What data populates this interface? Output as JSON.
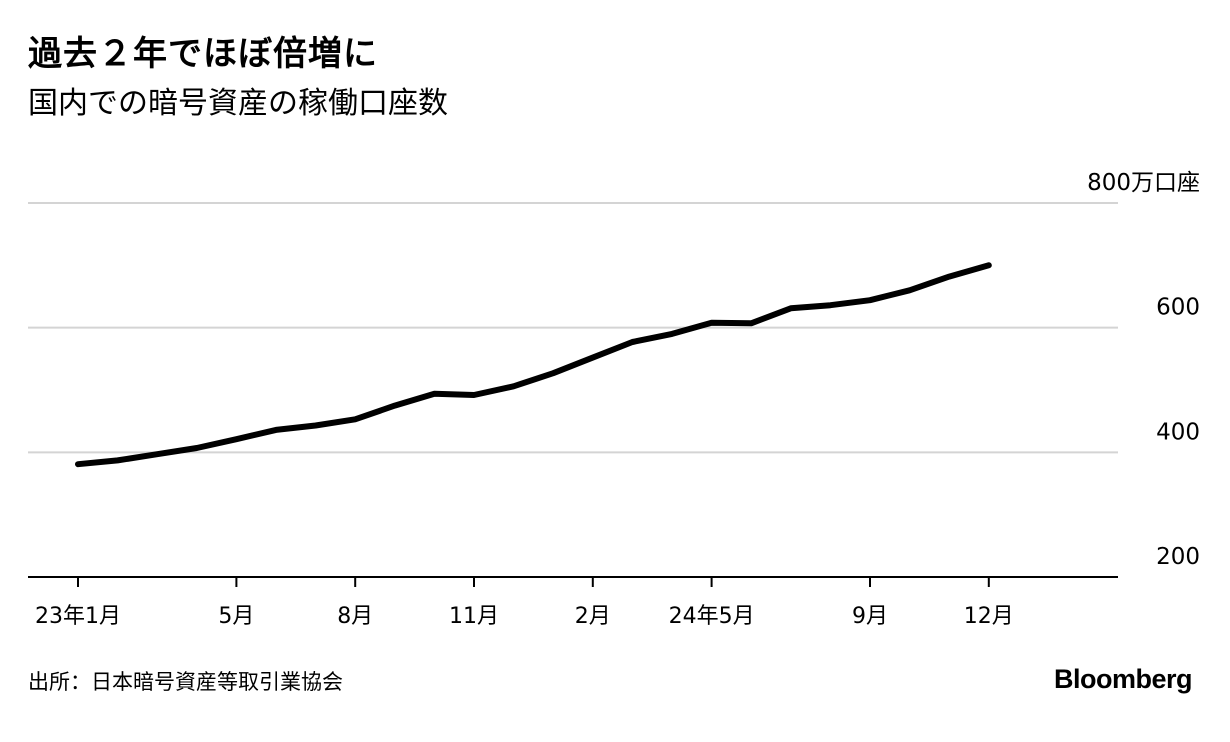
{
  "chart_data": {
    "type": "line",
    "title": "過去２年でほぼ倍増に",
    "subtitle": "国内での暗号資産の稼働口座数",
    "ylabel_unit_tick": "800万口座",
    "y_ticks": [
      {
        "value": 800,
        "label": "800万口座"
      },
      {
        "value": 600,
        "label": "600"
      },
      {
        "value": 400,
        "label": "400"
      },
      {
        "value": 200,
        "label": "200"
      }
    ],
    "ylim": [
      200,
      800
    ],
    "grid": true,
    "x_tick_labels": [
      {
        "index": 0,
        "label": "23年1月"
      },
      {
        "index": 4,
        "label": "5月"
      },
      {
        "index": 7,
        "label": "8月"
      },
      {
        "index": 10,
        "label": "11月"
      },
      {
        "index": 13,
        "label": "2月"
      },
      {
        "index": 16,
        "label": "24年5月"
      },
      {
        "index": 20,
        "label": "9月"
      },
      {
        "index": 23,
        "label": "12月"
      }
    ],
    "x": [
      "2023-01",
      "2023-02",
      "2023-03",
      "2023-04",
      "2023-05",
      "2023-06",
      "2023-07",
      "2023-08",
      "2023-09",
      "2023-10",
      "2023-11",
      "2023-12",
      "2024-01",
      "2024-02",
      "2024-03",
      "2024-04",
      "2024-05",
      "2024-06",
      "2024-07",
      "2024-08",
      "2024-09",
      "2024-10",
      "2024-11",
      "2024-12"
    ],
    "series": [
      {
        "values": [
          381,
          387,
          397,
          407,
          421,
          436,
          443,
          453,
          475,
          494,
          492,
          506,
          527,
          552,
          577,
          590,
          608,
          607,
          631,
          636,
          644,
          660,
          682,
          700
        ],
        "color": "#000000"
      }
    ],
    "baseline_color": "#000000",
    "grid_color": "#d4d4d4"
  },
  "source": "出所：日本暗号資産等取引業協会",
  "brand": "Bloomberg"
}
